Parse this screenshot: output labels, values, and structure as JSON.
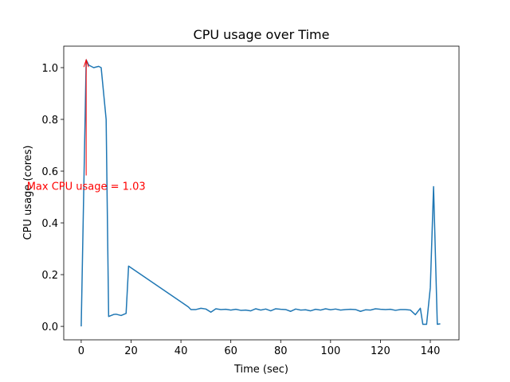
{
  "chart_data": {
    "type": "line",
    "title": "CPU usage over Time",
    "xlabel": "Time (sec)",
    "ylabel": "CPU usage (cores)",
    "x": [
      0,
      2,
      3,
      5,
      7,
      8,
      10,
      11,
      13,
      14,
      16,
      18,
      19,
      43,
      44,
      46,
      48,
      50,
      52,
      54,
      56,
      58,
      60,
      62,
      64,
      66,
      68,
      70,
      72,
      74,
      76,
      78,
      80,
      82,
      84,
      86,
      88,
      90,
      92,
      94,
      96,
      98,
      100,
      102,
      104,
      106,
      108,
      110,
      112,
      114,
      116,
      118,
      120,
      122,
      124,
      126,
      128,
      130,
      132,
      134,
      136,
      137,
      138.5,
      140,
      141.3,
      142.8,
      144
    ],
    "series": [
      {
        "name": "CPU usage",
        "color": "#1f77b4",
        "values": [
          0,
          1.03,
          1.01,
          1.0,
          1.005,
          1.0,
          0.8,
          0.038,
          0.046,
          0.047,
          0.042,
          0.05,
          0.233,
          0.075,
          0.065,
          0.065,
          0.07,
          0.067,
          0.055,
          0.068,
          0.065,
          0.066,
          0.063,
          0.066,
          0.062,
          0.063,
          0.06,
          0.068,
          0.063,
          0.067,
          0.06,
          0.068,
          0.066,
          0.065,
          0.058,
          0.067,
          0.063,
          0.064,
          0.06,
          0.066,
          0.063,
          0.068,
          0.064,
          0.067,
          0.063,
          0.065,
          0.066,
          0.065,
          0.058,
          0.064,
          0.063,
          0.068,
          0.066,
          0.065,
          0.066,
          0.062,
          0.065,
          0.065,
          0.063,
          0.045,
          0.07,
          0.008,
          0.008,
          0.15,
          0.54,
          0.008,
          0.01
        ]
      }
    ],
    "annotation": {
      "text": "Max CPU usage = 1.03",
      "x": 2,
      "y": 1.03,
      "text_x": 2,
      "text_y": 0.54,
      "color": "#ff0000"
    },
    "xlim": [
      -7,
      151.5
    ],
    "ylim": [
      -0.052,
      1.083
    ],
    "xticks": [
      0,
      20,
      40,
      60,
      80,
      100,
      120,
      140
    ],
    "yticks": [
      {
        "value": 0,
        "label": "0.0"
      },
      {
        "value": 0.2,
        "label": "0.2"
      },
      {
        "value": 0.4,
        "label": "0.4"
      },
      {
        "value": 0.6,
        "label": "0.6"
      },
      {
        "value": 0.8,
        "label": "0.8"
      },
      {
        "value": 1.0,
        "label": "1.0"
      }
    ]
  }
}
